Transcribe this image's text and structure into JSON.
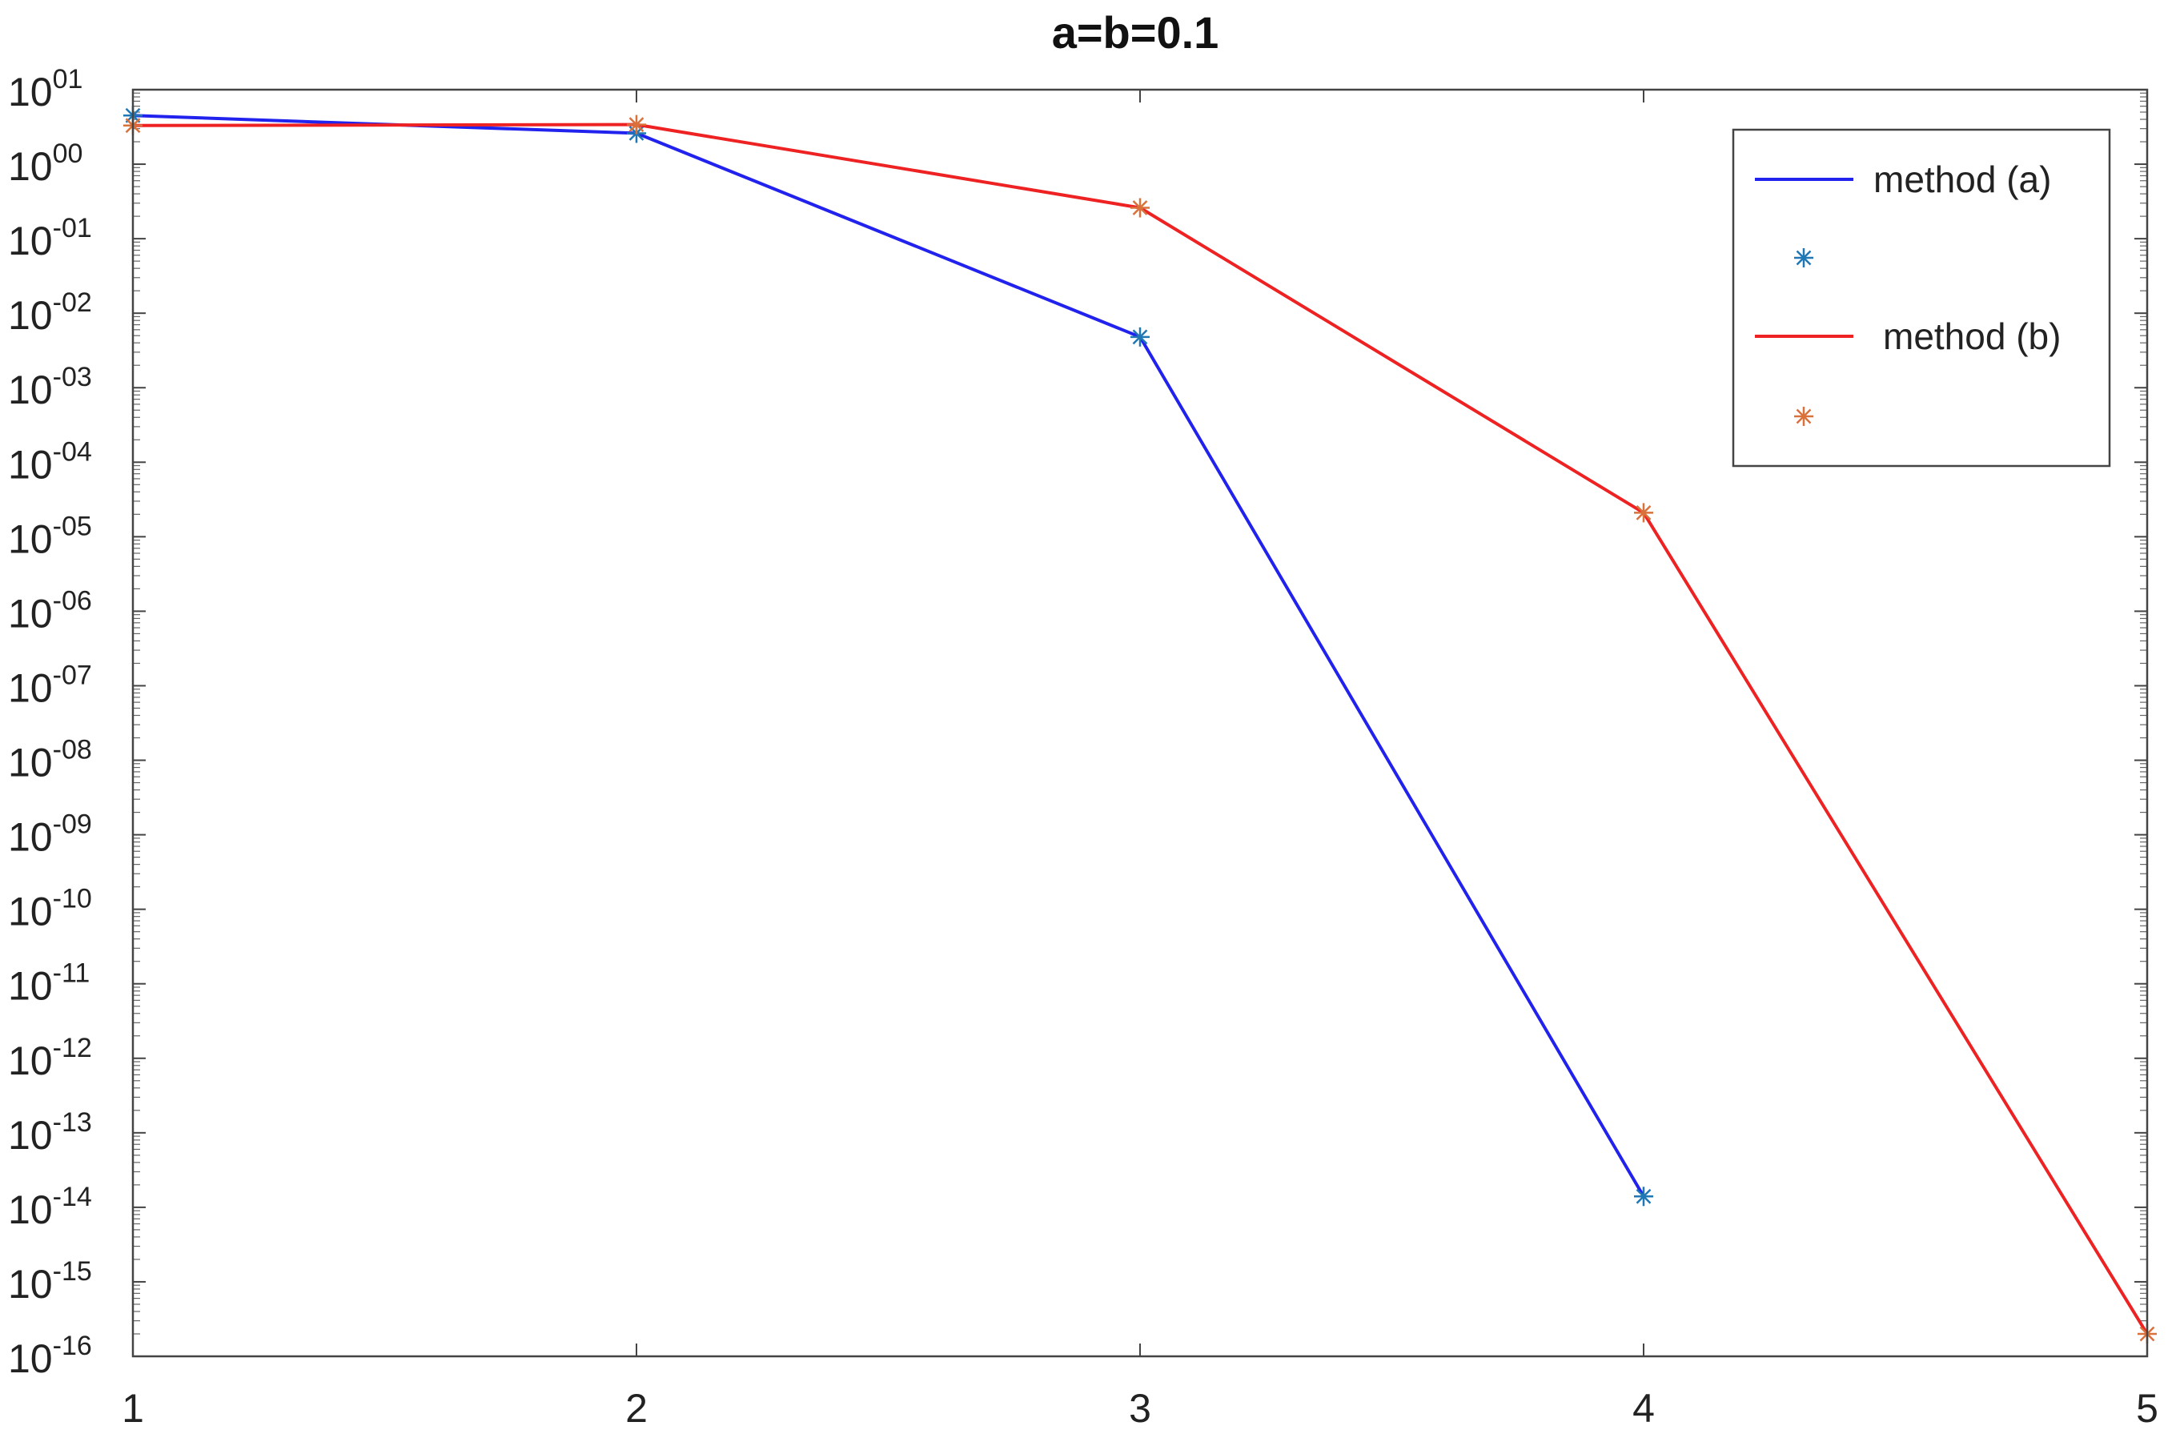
{
  "chart_data": {
    "type": "line",
    "title": "a=b=0.1",
    "xlabel": "",
    "ylabel": "",
    "y_scale": "log",
    "xlim": [
      1,
      5
    ],
    "ylim": [
      1e-16,
      10.0
    ],
    "x_ticks": [
      "1",
      "2",
      "3",
      "4",
      "5"
    ],
    "y_ticks": [
      {
        "base": "10",
        "exp": "01"
      },
      {
        "base": "10",
        "exp": "00"
      },
      {
        "base": "10",
        "exp": "-01"
      },
      {
        "base": "10",
        "exp": "-02"
      },
      {
        "base": "10",
        "exp": "-03"
      },
      {
        "base": "10",
        "exp": "-04"
      },
      {
        "base": "10",
        "exp": "-05"
      },
      {
        "base": "10",
        "exp": "-06"
      },
      {
        "base": "10",
        "exp": "-07"
      },
      {
        "base": "10",
        "exp": "-08"
      },
      {
        "base": "10",
        "exp": "-09"
      },
      {
        "base": "10",
        "exp": "-10"
      },
      {
        "base": "10",
        "exp": "-11"
      },
      {
        "base": "10",
        "exp": "-12"
      },
      {
        "base": "10",
        "exp": "-13"
      },
      {
        "base": "10",
        "exp": "-14"
      },
      {
        "base": "10",
        "exp": "-15"
      },
      {
        "base": "10",
        "exp": "-16"
      }
    ],
    "grid": false,
    "legend_position": "top-right",
    "series": [
      {
        "name": "method (a)",
        "color": "#2222ee",
        "marker": "*",
        "marker_color": "#1f77b4",
        "x": [
          1,
          2,
          3,
          4
        ],
        "y": [
          4.5,
          2.6,
          0.0048,
          1.4e-14
        ]
      },
      {
        "name": "method (b)",
        "color": "#ee2222",
        "marker": "*",
        "marker_color": "#d9713b",
        "x": [
          1,
          2,
          3,
          4,
          5
        ],
        "y": [
          3.3,
          3.4,
          0.26,
          2.1e-05,
          2e-16
        ]
      }
    ]
  }
}
